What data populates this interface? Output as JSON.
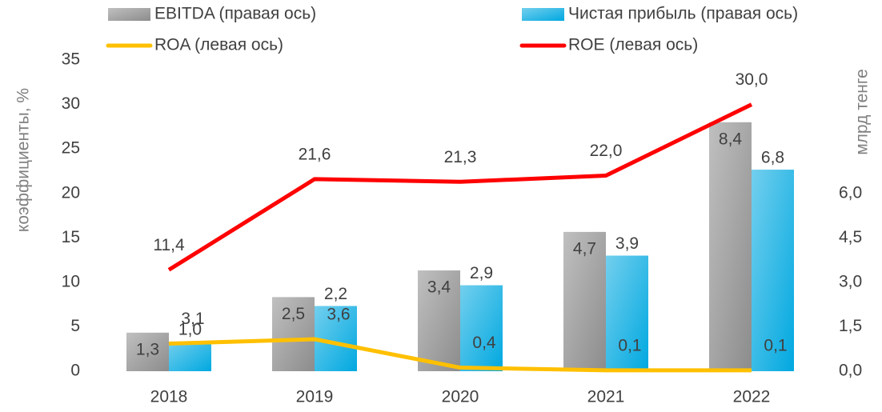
{
  "chart_data": {
    "type": "bar-line",
    "categories": [
      "2018",
      "2019",
      "2020",
      "2021",
      "2022"
    ],
    "ylabel": "коэффициенты, %",
    "y2label": "млрд тенге",
    "ylim": [
      0,
      35
    ],
    "yticks": [
      0,
      5,
      10,
      15,
      20,
      25,
      30,
      35
    ],
    "y2lim": [
      0,
      10.5
    ],
    "y2ticks": [
      {
        "value": 0,
        "label": "0,0"
      },
      {
        "value": 1.5,
        "label": "1,5"
      },
      {
        "value": 3,
        "label": "3,0"
      },
      {
        "value": 4.5,
        "label": "4,5"
      },
      {
        "value": 6,
        "label": "6,0"
      }
    ],
    "legend": "top",
    "series": [
      {
        "name": "EBITDA (правая ось)",
        "type": "bar",
        "axis": "y2",
        "color": "#8c8c8c",
        "values": [
          1.3,
          2.5,
          3.4,
          4.7,
          8.4
        ],
        "value_labels": [
          "1,3",
          "2,5",
          "3,4",
          "4,7",
          "8,4"
        ]
      },
      {
        "name": "Чистая прибыль (правая ось)",
        "type": "bar",
        "axis": "y2",
        "color": "#00a8e0",
        "values": [
          1.0,
          2.2,
          2.9,
          3.9,
          6.8
        ],
        "value_labels": [
          "1,0",
          "2,2",
          "2,9",
          "3,9",
          "6,8"
        ]
      },
      {
        "name": "ROA (левая ось)",
        "type": "line",
        "color": "#ffc000",
        "values": [
          3.1,
          3.6,
          0.4,
          0.1,
          0.1
        ],
        "value_labels": [
          "3,1",
          "3,6",
          "0,4",
          "0,1",
          "0,1"
        ]
      },
      {
        "name": "ROE (левая ось)",
        "type": "line",
        "color": "#ff0000",
        "values": [
          11.4,
          21.6,
          21.3,
          22.0,
          30.0
        ],
        "value_labels": [
          "11,4",
          "21,6",
          "21,3",
          "22,0",
          "30,0"
        ]
      }
    ]
  }
}
